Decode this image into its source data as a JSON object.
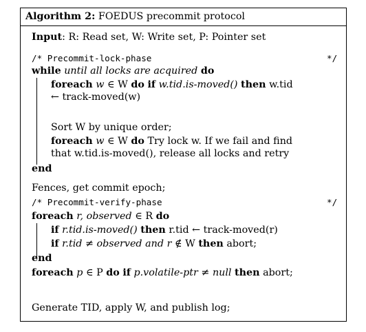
{
  "algorithm": {
    "caption_label": "Algorithm 2:",
    "caption_title": "FOEDUS precommit protocol",
    "input": {
      "keyword": "Input",
      "text": ": R: Read set, W: Write set, P: Pointer set"
    },
    "lock_phase": {
      "comment_open": "/* Precommit-lock-phase",
      "comment_close": "*/",
      "while_kw": "while",
      "while_cond": "until all locks are acquired",
      "do_kw": "do",
      "foreach1": {
        "kw": "foreach",
        "var": "w",
        "in_set": "∈ W",
        "do_kw": "do",
        "if_kw": "if",
        "cond": "w.tid.is-moved()",
        "then_kw": "then",
        "stmt_1": "w.tid",
        "stmt_2": "← track-moved(w)"
      },
      "sort_stmt": "Sort W by unique order;",
      "foreach2": {
        "kw": "foreach",
        "var": "w",
        "in_set": "∈ W",
        "do_kw": "do",
        "text_1": "Try lock w. If we fail and find",
        "text_2": "that w.tid.is-moved(), release all locks and retry"
      },
      "end_kw": "end"
    },
    "fences_stmt": "Fences, get commit epoch;",
    "verify_phase": {
      "comment_open": "/* Precommit-verify-phase",
      "comment_close": "*/",
      "foreach_kw": "foreach",
      "vars": "r, observed",
      "in_set": "∈ R",
      "do_kw": "do",
      "if1": {
        "if_kw": "if",
        "cond": "r.tid.is-moved()",
        "then_kw": "then",
        "stmt": "r.tid ← track-moved(r)"
      },
      "if2": {
        "if_kw": "if",
        "cond_a": "r.tid",
        "cond_b": "≠",
        "cond_c": "observed",
        "cond_d": "and r",
        "cond_e": "∉ W",
        "then_kw": "then",
        "stmt": "abort;"
      },
      "end_kw": "end"
    },
    "pointer_check": {
      "foreach_kw": "foreach",
      "var": "p",
      "in_set": "∈ P",
      "do_kw": "do",
      "if_kw": "if",
      "cond": "p.volatile-ptr",
      "neq": "≠",
      "null_word": "null",
      "then_kw": "then",
      "stmt": "abort;"
    },
    "final_stmt": "Generate TID, apply W, and publish log;"
  }
}
